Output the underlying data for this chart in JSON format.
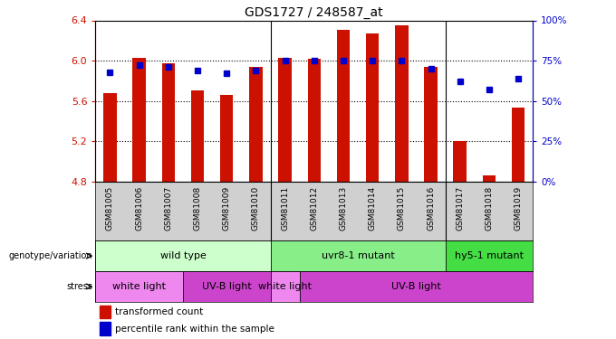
{
  "title": "GDS1727 / 248587_at",
  "samples": [
    "GSM81005",
    "GSM81006",
    "GSM81007",
    "GSM81008",
    "GSM81009",
    "GSM81010",
    "GSM81011",
    "GSM81012",
    "GSM81013",
    "GSM81014",
    "GSM81015",
    "GSM81016",
    "GSM81017",
    "GSM81018",
    "GSM81019"
  ],
  "bar_values": [
    5.68,
    6.03,
    5.97,
    5.7,
    5.66,
    5.94,
    6.03,
    6.02,
    6.31,
    6.27,
    6.35,
    5.94,
    5.2,
    4.86,
    5.53
  ],
  "percentile_values": [
    68,
    72,
    71,
    69,
    67,
    69,
    75,
    75,
    75,
    75,
    75,
    70,
    62,
    57,
    64
  ],
  "bar_bottom": 4.8,
  "ylim_left": [
    4.8,
    6.4
  ],
  "ylim_right": [
    0,
    100
  ],
  "yticks_left": [
    4.8,
    5.2,
    5.6,
    6.0,
    6.4
  ],
  "yticks_right": [
    0,
    25,
    50,
    75,
    100
  ],
  "ytick_labels_right": [
    "0%",
    "25%",
    "50%",
    "75%",
    "100%"
  ],
  "bar_color": "#cc1100",
  "dot_color": "#0000cc",
  "bg_color": "#ffffff",
  "genotype_groups": [
    {
      "label": "wild type",
      "start": 0,
      "end": 6,
      "color": "#ccffcc"
    },
    {
      "label": "uvr8-1 mutant",
      "start": 6,
      "end": 12,
      "color": "#88ee88"
    },
    {
      "label": "hy5-1 mutant",
      "start": 12,
      "end": 15,
      "color": "#44dd44"
    }
  ],
  "stress_groups": [
    {
      "label": "white light",
      "start": 0,
      "end": 3,
      "color": "#ee88ee"
    },
    {
      "label": "UV-B light",
      "start": 3,
      "end": 6,
      "color": "#cc44cc"
    },
    {
      "label": "white light",
      "start": 6,
      "end": 7,
      "color": "#ee88ee"
    },
    {
      "label": "UV-B light",
      "start": 7,
      "end": 15,
      "color": "#cc44cc"
    }
  ],
  "legend_items": [
    {
      "label": "transformed count",
      "color": "#cc1100"
    },
    {
      "label": "percentile rank within the sample",
      "color": "#0000cc"
    }
  ],
  "group_sep": [
    5.5,
    11.5
  ],
  "stress_sep": [
    2.5,
    5.5,
    6.5
  ]
}
